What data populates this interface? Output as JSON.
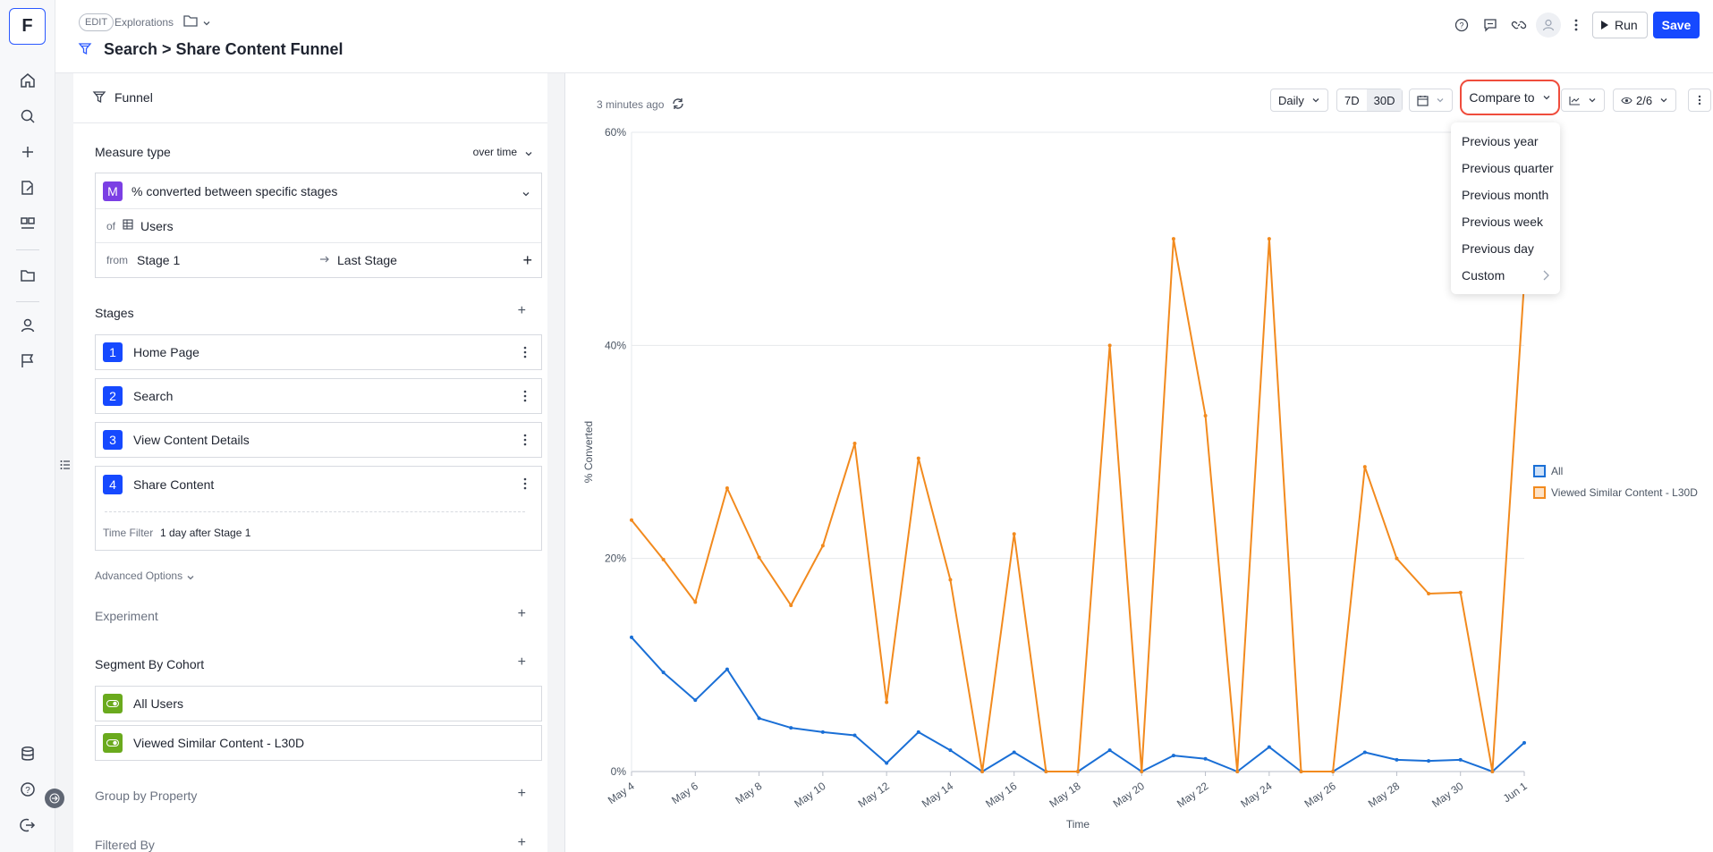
{
  "sidebar": {
    "logo": "F",
    "icons": [
      "home-icon",
      "search-icon",
      "plus-icon",
      "reports-icon",
      "boards-icon",
      "folder-icon",
      "user-icon",
      "flag-icon",
      "database-icon",
      "help-icon",
      "logout-icon"
    ]
  },
  "header": {
    "edit_badge": "EDIT",
    "breadcrumb": "Explorations",
    "title": "Search > Share Content Funnel",
    "run_label": "Run",
    "save_label": "Save",
    "accent": "#1649ff"
  },
  "left": {
    "tab_label": "Funnel",
    "measure_type_label": "Measure type",
    "measure_mode": "over time",
    "measure_badge": "M",
    "measure_value": "% converted between specific stages",
    "of_label": "of",
    "of_value": "Users",
    "from_label": "from",
    "from_value": "Stage 1",
    "to_value": "Last Stage",
    "stages_label": "Stages",
    "stages": [
      {
        "num": "1",
        "label": "Home Page"
      },
      {
        "num": "2",
        "label": "Search"
      },
      {
        "num": "3",
        "label": "View Content Details"
      },
      {
        "num": "4",
        "label": "Share Content"
      }
    ],
    "time_filter_label": "Time Filter",
    "time_filter_value": "1 day after Stage 1",
    "advanced_options": "Advanced Options",
    "experiment_label": "Experiment",
    "segment_label": "Segment By Cohort",
    "cohorts": [
      "All Users",
      "Viewed Similar Content - L30D"
    ],
    "group_by_label": "Group by Property",
    "filtered_by_label": "Filtered By"
  },
  "toolbar": {
    "updated": "3 minutes ago",
    "granularity": "Daily",
    "range_7d": "7D",
    "range_30d": "30D",
    "compare_label": "Compare to",
    "visible_series": "2/6"
  },
  "compare_menu": [
    "Previous year",
    "Previous quarter",
    "Previous month",
    "Previous week",
    "Previous day",
    "Custom"
  ],
  "chart_data": {
    "type": "line",
    "xlabel": "Time",
    "ylabel": "% Converted",
    "ylim": [
      0,
      60
    ],
    "yticks": [
      "0%",
      "20%",
      "40%",
      "60%"
    ],
    "x": [
      "May 4",
      "May 5",
      "May 6",
      "May 7",
      "May 8",
      "May 9",
      "May 10",
      "May 11",
      "May 12",
      "May 13",
      "May 14",
      "May 15",
      "May 16",
      "May 17",
      "May 18",
      "May 19",
      "May 20",
      "May 21",
      "May 22",
      "May 23",
      "May 24",
      "May 25",
      "May 26",
      "May 27",
      "May 28",
      "May 29",
      "May 30",
      "May 31",
      "Jun 1"
    ],
    "xtick_labels": [
      "May 4",
      "May 6",
      "May 8",
      "May 10",
      "May 12",
      "May 14",
      "May 16",
      "May 18",
      "May 20",
      "May 22",
      "May 24",
      "May 26",
      "May 28",
      "May 30",
      "Jun 1"
    ],
    "grid": true,
    "legend_position": "right",
    "series": [
      {
        "name": "All",
        "color": "#1a6fd6",
        "values": [
          12.6,
          9.3,
          6.7,
          9.6,
          5.0,
          4.1,
          3.7,
          3.4,
          0.8,
          3.7,
          2.0,
          0.0,
          1.8,
          0.0,
          0.0,
          2.0,
          0.0,
          1.5,
          1.2,
          0.0,
          2.3,
          0.0,
          0.0,
          1.8,
          1.1,
          1.0,
          1.1,
          0.0,
          2.7
        ]
      },
      {
        "name": "Viewed Similar Content - L30D",
        "color": "#f28a1e",
        "values": [
          23.6,
          19.9,
          15.9,
          26.6,
          20.1,
          15.6,
          21.2,
          30.8,
          6.5,
          29.4,
          18.0,
          0.0,
          22.3,
          0.0,
          0.0,
          40.0,
          0.0,
          50.0,
          33.4,
          0.0,
          50.0,
          0.0,
          0.0,
          28.6,
          20.0,
          16.7,
          16.8,
          0.0,
          46.0
        ]
      }
    ]
  }
}
